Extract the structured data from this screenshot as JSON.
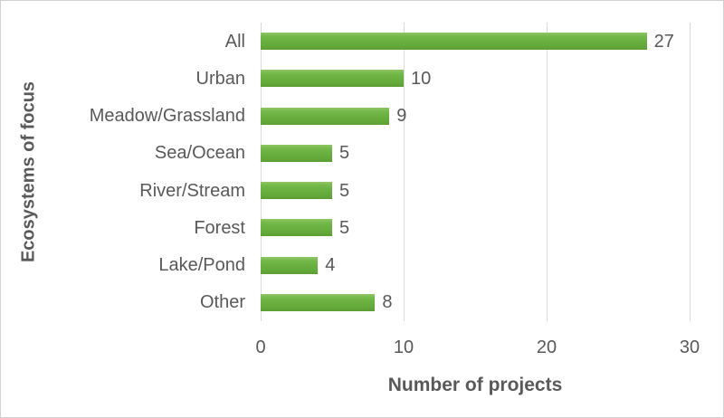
{
  "chart_data": {
    "type": "bar",
    "orientation": "horizontal",
    "title": "",
    "categories": [
      "All",
      "Urban",
      "Meadow/Grassland",
      "Sea/Ocean",
      "River/Stream",
      "Forest",
      "Lake/Pond",
      "Other"
    ],
    "values": [
      27,
      10,
      9,
      5,
      5,
      5,
      4,
      8
    ],
    "data_labels": [
      "27",
      "10",
      "9",
      "5",
      "5",
      "5",
      "4",
      "8"
    ],
    "xlabel": "Number of projects",
    "ylabel": "Ecosystems of focus",
    "xlim": [
      0,
      30
    ],
    "xticks": [
      0,
      10,
      20,
      30
    ],
    "grid": true,
    "legend_position": "none",
    "colors": {
      "bar_top": "#8FC763",
      "bar_mid": "#6BB142",
      "bar_bottom": "#5C9E33",
      "text": "#595959",
      "gridline": "#D9D9D9",
      "border": "#D2D2D2",
      "background": "#FFFFFF"
    }
  }
}
